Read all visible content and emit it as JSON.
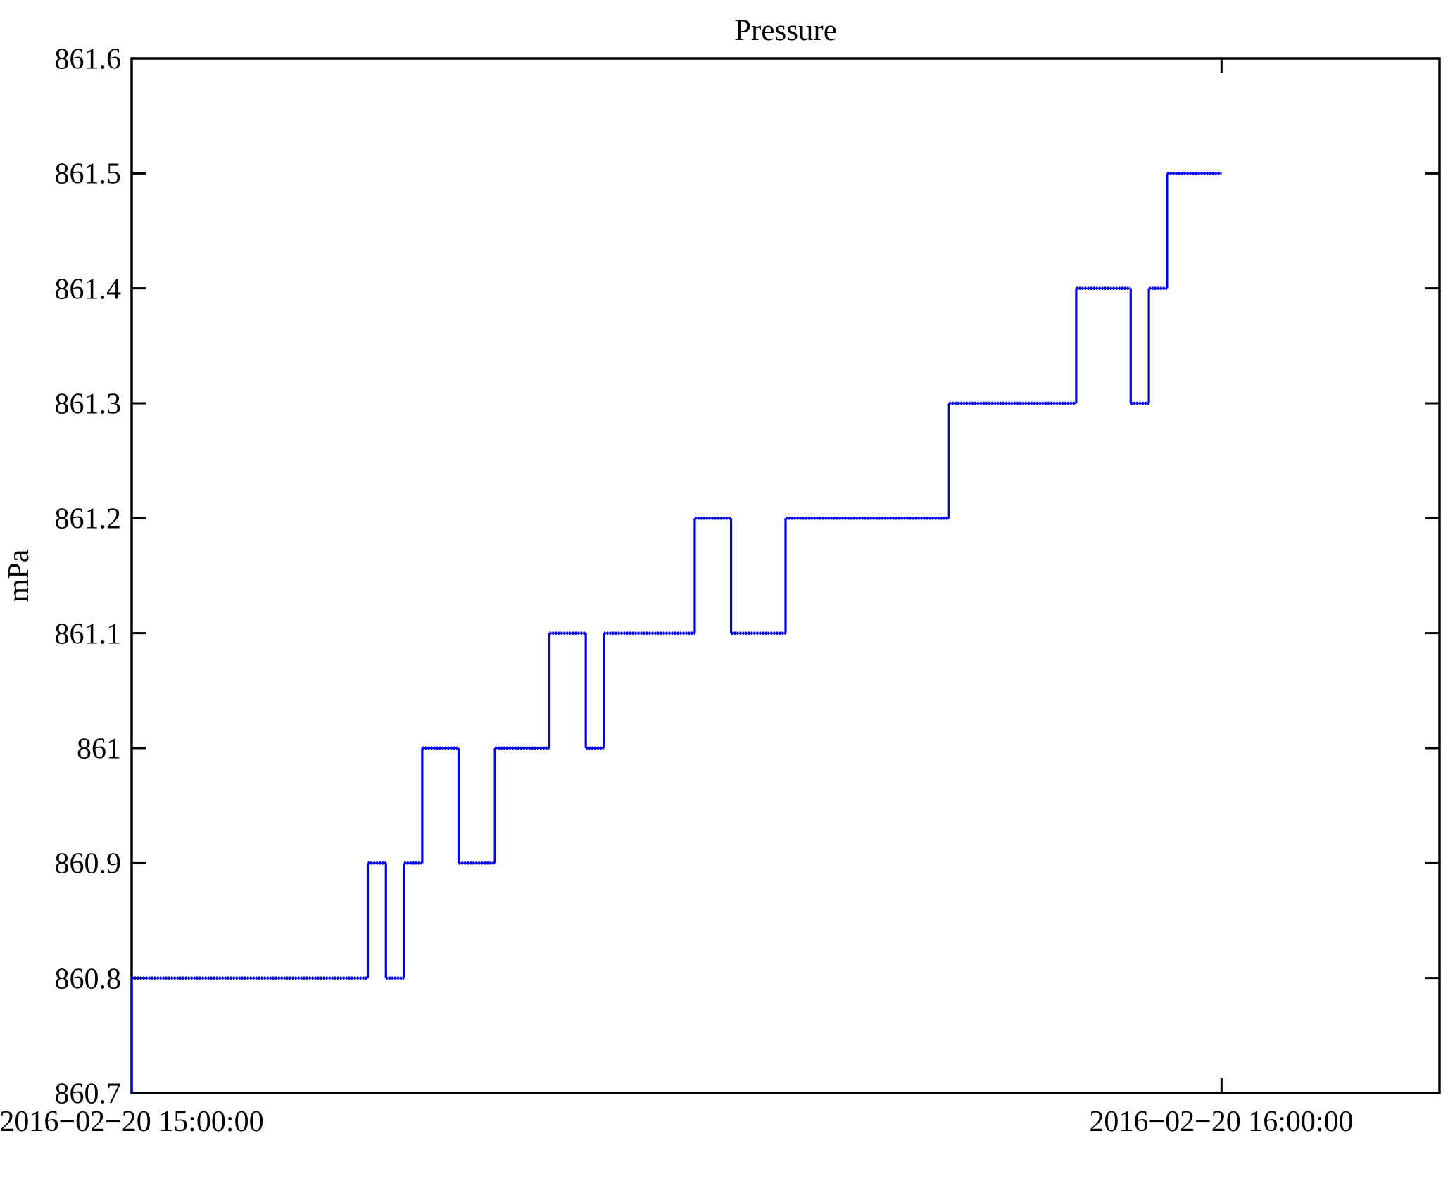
{
  "chart_data": {
    "type": "line",
    "subtype": "step",
    "title": "Pressure",
    "xlabel": "",
    "ylabel": "mPa",
    "line_color": "#0000ee",
    "axis_color": "#000000",
    "grid": false,
    "legend": "none",
    "ylim": [
      860.7,
      861.6
    ],
    "x_range_minutes": [
      0,
      72
    ],
    "x_start_label": "2016−02−20 15:00:00",
    "xticks": [
      {
        "minute": 0,
        "label": "2016−02−20 15:00:00"
      },
      {
        "minute": 60,
        "label": "2016−02−20 16:00:00"
      }
    ],
    "yticks": [
      {
        "value": 861.6,
        "label": "861.6"
      },
      {
        "value": 861.5,
        "label": "861.5"
      },
      {
        "value": 861.4,
        "label": "861.4"
      },
      {
        "value": 861.3,
        "label": "861.3"
      },
      {
        "value": 861.2,
        "label": "861.2"
      },
      {
        "value": 861.1,
        "label": "861.1"
      },
      {
        "value": 861.0,
        "label": "861"
      },
      {
        "value": 860.9,
        "label": "860.9"
      },
      {
        "value": 860.8,
        "label": "860.8"
      },
      {
        "value": 860.7,
        "label": "860.7"
      }
    ],
    "points_minute_value": [
      [
        0,
        860.7
      ],
      [
        0,
        860.8
      ],
      [
        13,
        860.8
      ],
      [
        13,
        860.9
      ],
      [
        14,
        860.9
      ],
      [
        14,
        860.8
      ],
      [
        15,
        860.8
      ],
      [
        15,
        860.9
      ],
      [
        16,
        860.9
      ],
      [
        16,
        861.0
      ],
      [
        18,
        861.0
      ],
      [
        18,
        860.9
      ],
      [
        20,
        860.9
      ],
      [
        20,
        861.0
      ],
      [
        23,
        861.0
      ],
      [
        23,
        861.1
      ],
      [
        25,
        861.1
      ],
      [
        25,
        861.0
      ],
      [
        26,
        861.0
      ],
      [
        26,
        861.1
      ],
      [
        31,
        861.1
      ],
      [
        31,
        861.2
      ],
      [
        33,
        861.2
      ],
      [
        33,
        861.1
      ],
      [
        36,
        861.1
      ],
      [
        36,
        861.2
      ],
      [
        45,
        861.2
      ],
      [
        45,
        861.3
      ],
      [
        52,
        861.3
      ],
      [
        52,
        861.4
      ],
      [
        55,
        861.4
      ],
      [
        55,
        861.3
      ],
      [
        56,
        861.3
      ],
      [
        56,
        861.4
      ],
      [
        57,
        861.4
      ],
      [
        57,
        861.5
      ],
      [
        60,
        861.5
      ]
    ]
  }
}
